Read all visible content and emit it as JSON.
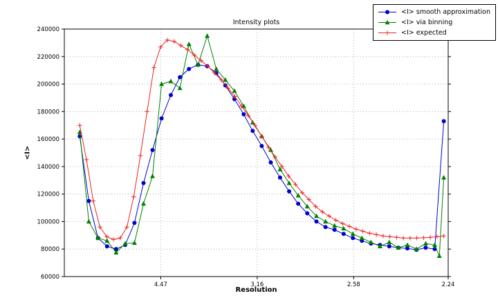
{
  "chart_data": {
    "type": "line",
    "title": "Intensity plots",
    "xlabel": "Resolution",
    "ylabel": "<I>",
    "grid": true,
    "legend_position": "upper right",
    "background_color": "#ffffff",
    "x_axis": {
      "min": 0,
      "max": 0.1993,
      "scale_note": "linear in 1/d^2, tick labels are d-spacing resolution values",
      "ticks": [
        {
          "label": "4.47",
          "value": 0.05005
        },
        {
          "label": "3.16",
          "value": 0.1001
        },
        {
          "label": "2.58",
          "value": 0.1502
        },
        {
          "label": "2.24",
          "value": 0.1993
        }
      ]
    },
    "y_axis": {
      "min": 60000,
      "max": 240000,
      "ticks": [
        60000,
        80000,
        100000,
        120000,
        140000,
        160000,
        180000,
        200000,
        220000,
        240000
      ]
    },
    "series": [
      {
        "name": "<I> smooth approximation",
        "color": "#0000cd",
        "marker": "circle",
        "x": [
          0.008,
          0.0127,
          0.0175,
          0.0222,
          0.0269,
          0.0316,
          0.0364,
          0.0411,
          0.0458,
          0.0505,
          0.0553,
          0.06,
          0.0647,
          0.0694,
          0.0742,
          0.0789,
          0.0836,
          0.0883,
          0.0931,
          0.0978,
          0.1025,
          0.1072,
          0.112,
          0.1167,
          0.1214,
          0.1261,
          0.1309,
          0.1356,
          0.1403,
          0.145,
          0.1498,
          0.1545,
          0.1592,
          0.1639,
          0.1687,
          0.1734,
          0.1781,
          0.1828,
          0.1876,
          0.1923,
          0.197
        ],
        "y": [
          162000,
          115000,
          88000,
          82000,
          80000,
          83000,
          99000,
          128000,
          152000,
          175000,
          192000,
          205000,
          211000,
          214000,
          213000,
          208000,
          199000,
          189000,
          178000,
          166000,
          155000,
          143000,
          132000,
          122000,
          113000,
          106000,
          100000,
          96000,
          94000,
          91000,
          88000,
          86000,
          84000,
          83000,
          82000,
          81000,
          80500,
          79500,
          81000,
          80000,
          173000
        ]
      },
      {
        "name": "<I> via binning",
        "color": "#008000",
        "marker": "triangle",
        "x": [
          0.008,
          0.0127,
          0.0175,
          0.0222,
          0.0269,
          0.0316,
          0.0364,
          0.0411,
          0.0458,
          0.0505,
          0.0553,
          0.06,
          0.0647,
          0.0694,
          0.0742,
          0.0789,
          0.0836,
          0.0883,
          0.0931,
          0.0978,
          0.1025,
          0.1072,
          0.112,
          0.1167,
          0.1214,
          0.1261,
          0.1309,
          0.1356,
          0.1403,
          0.145,
          0.1498,
          0.1545,
          0.1592,
          0.1639,
          0.1687,
          0.1734,
          0.1781,
          0.1828,
          0.1876,
          0.1923,
          0.1947,
          0.197
        ],
        "y": [
          165000,
          100000,
          88000,
          86000,
          77500,
          84000,
          84500,
          113000,
          133000,
          200000,
          202000,
          197000,
          229000,
          214000,
          235000,
          211000,
          203000,
          195000,
          184000,
          172000,
          162000,
          152000,
          138000,
          128000,
          119000,
          111000,
          104000,
          100000,
          97000,
          95000,
          91000,
          88000,
          85000,
          82000,
          85000,
          81000,
          83000,
          80000,
          84000,
          83000,
          75000,
          132000
        ]
      },
      {
        "name": "<I> expected",
        "color": "#ee2222",
        "marker": "plus",
        "x": [
          0.008,
          0.0115,
          0.015,
          0.0185,
          0.022,
          0.0255,
          0.029,
          0.0325,
          0.036,
          0.0395,
          0.043,
          0.0465,
          0.05,
          0.0535,
          0.057,
          0.0605,
          0.064,
          0.0675,
          0.071,
          0.0745,
          0.078,
          0.0815,
          0.085,
          0.0885,
          0.092,
          0.0955,
          0.099,
          0.1025,
          0.106,
          0.1095,
          0.113,
          0.1165,
          0.12,
          0.1235,
          0.127,
          0.1305,
          0.134,
          0.1375,
          0.141,
          0.1445,
          0.148,
          0.1515,
          0.155,
          0.1585,
          0.162,
          0.1655,
          0.169,
          0.1725,
          0.176,
          0.1795,
          0.183,
          0.1865,
          0.19,
          0.1935,
          0.197
        ],
        "y": [
          170000,
          145000,
          115000,
          96000,
          89000,
          87000,
          88000,
          96000,
          118000,
          148000,
          180000,
          212000,
          227000,
          232000,
          231000,
          228000,
          225000,
          221000,
          217000,
          213000,
          208000,
          203000,
          197000,
          191000,
          184000,
          177000,
          170000,
          162000,
          154000,
          147000,
          140000,
          133000,
          127000,
          121000,
          116000,
          111000,
          107000,
          104000,
          101000,
          98500,
          96500,
          94500,
          93000,
          91500,
          90500,
          89500,
          89000,
          88500,
          88000,
          88000,
          88000,
          88200,
          88500,
          89000,
          89500
        ]
      }
    ]
  }
}
